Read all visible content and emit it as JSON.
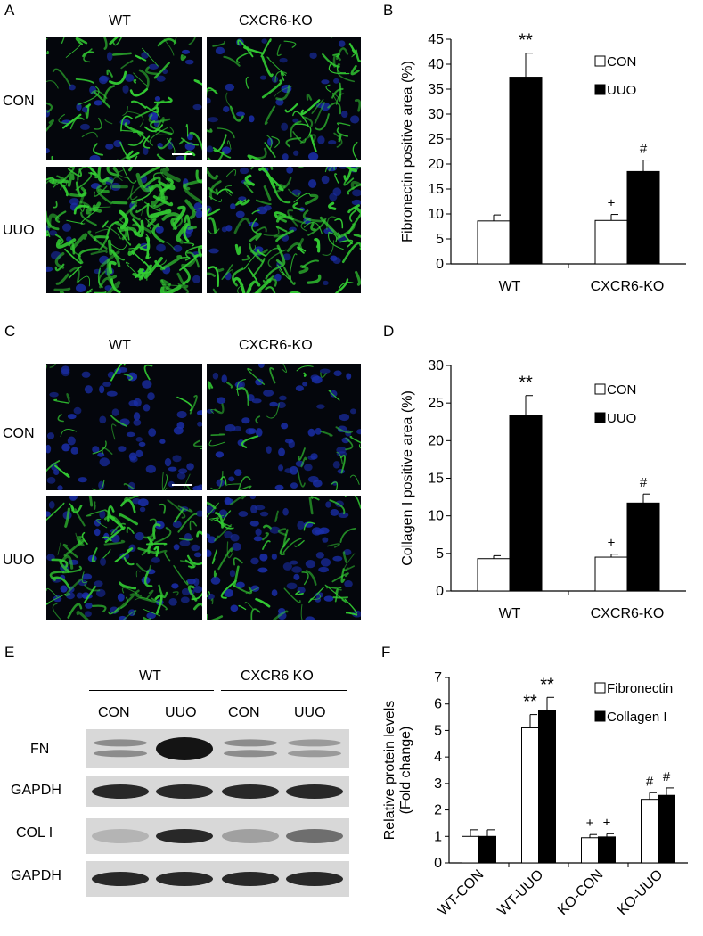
{
  "panels": {
    "A": "A",
    "B": "B",
    "C": "C",
    "D": "D",
    "E": "E",
    "F": "F"
  },
  "micrographs": {
    "col_labels": [
      "WT",
      "CXCR6-KO"
    ],
    "row_labels": [
      "CON",
      "UUO"
    ]
  },
  "western": {
    "group_labels": [
      "WT",
      "CXCR6 KO"
    ],
    "lane_labels": [
      "CON",
      "UUO",
      "CON",
      "UUO"
    ],
    "row_labels": [
      "FN",
      "GAPDH",
      "COL I",
      "GAPDH"
    ],
    "band_intensity": {
      "FN": [
        0.35,
        0.95,
        0.35,
        0.28
      ],
      "GAPDH_1": [
        0.85,
        0.85,
        0.85,
        0.85
      ],
      "COL I": [
        0.15,
        0.85,
        0.25,
        0.5
      ],
      "GAPDH_2": [
        0.85,
        0.85,
        0.85,
        0.85
      ]
    }
  },
  "colors": {
    "con": "#ffffff",
    "uuo": "#000000",
    "green": "#33cc33",
    "blue": "#1a2ea8"
  },
  "chart_data": [
    {
      "id": "B",
      "type": "bar",
      "categories": [
        "WT",
        "CXCR6-KO"
      ],
      "series": [
        {
          "name": "CON",
          "values": [
            8.6,
            8.7
          ],
          "errors": [
            1.2,
            1.2
          ]
        },
        {
          "name": "UUO",
          "values": [
            37.4,
            18.5
          ],
          "errors": [
            4.8,
            2.3
          ]
        }
      ],
      "annotations": [
        [
          "",
          "+"
        ],
        [
          "**",
          "#"
        ]
      ],
      "ylabel": "Fibronectin positive area (%)",
      "xlabel": "",
      "ylim": [
        0,
        45
      ],
      "yticks": [
        0,
        5,
        10,
        15,
        20,
        25,
        30,
        35,
        40,
        45
      ],
      "legend": "top-right"
    },
    {
      "id": "D",
      "type": "bar",
      "categories": [
        "WT",
        "CXCR6-KO"
      ],
      "series": [
        {
          "name": "CON",
          "values": [
            4.3,
            4.5
          ],
          "errors": [
            0.4,
            0.4
          ]
        },
        {
          "name": "UUO",
          "values": [
            23.4,
            11.7
          ],
          "errors": [
            2.6,
            1.2
          ]
        }
      ],
      "annotations": [
        [
          "",
          "+"
        ],
        [
          "**",
          "#"
        ]
      ],
      "ylabel": "Collagen I positive area (%)",
      "xlabel": "",
      "ylim": [
        0,
        30
      ],
      "yticks": [
        0,
        5,
        10,
        15,
        20,
        25,
        30
      ],
      "legend": "top-right"
    },
    {
      "id": "F",
      "type": "bar",
      "categories": [
        "WT-CON",
        "WT-UUO",
        "KO-CON",
        "KO-UUO"
      ],
      "series": [
        {
          "name": "Fibronectin",
          "values": [
            1.0,
            5.1,
            0.95,
            2.4
          ],
          "errors": [
            0.25,
            0.5,
            0.12,
            0.25
          ]
        },
        {
          "name": "Collagen I",
          "values": [
            1.0,
            5.75,
            0.98,
            2.55
          ],
          "errors": [
            0.25,
            0.5,
            0.12,
            0.28
          ]
        }
      ],
      "annotations": [
        [
          "",
          "**",
          "+",
          "#"
        ],
        [
          "",
          "**",
          "+",
          "#"
        ]
      ],
      "ylabel": "Relative protein levels (Fold change)",
      "ylabel_lines": [
        "Relative protein levels",
        "(Fold change)"
      ],
      "xlabel": "",
      "ylim": [
        0,
        7
      ],
      "yticks": [
        0,
        1,
        2,
        3,
        4,
        5,
        6,
        7
      ],
      "legend": "top-right"
    }
  ]
}
